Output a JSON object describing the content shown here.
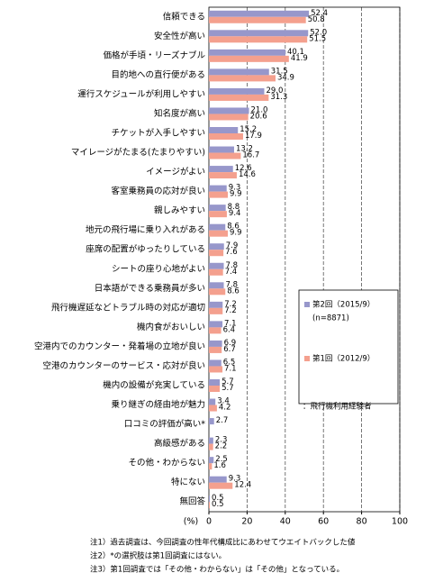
{
  "chart_data": {
    "type": "hbar",
    "categories": [
      "信頼できる",
      "安全性が高い",
      "価格が手頃・リーズナブル",
      "目的地への直行便がある",
      "運行スケジュールが利用しやすい",
      "知名度が高い",
      "チケットが入手しやすい",
      "マイレージがたまる(たまりやすい)",
      "イメージがよい",
      "客室乗務員の応対が良い",
      "親しみやすい",
      "地元の飛行場に乗り入れがある",
      "座席の配置がゆったりしている",
      "シートの座り心地がよい",
      "日本語ができる乗務員が多い",
      "飛行機遅延などトラブル時の対応が適切",
      "機内食がおいしい",
      "空港内でのカウンター・発着場の立地が良い",
      "空港のカウンターのサービス・応対が良い",
      "機内の設備が充実している",
      "乗り継ぎの経由地が魅力",
      "口コミの評価が高い*",
      "高級感がある",
      "その他・わからない",
      "特にない",
      "無回答"
    ],
    "series": [
      {
        "name": "第2回（2015/9）",
        "color": "#9797cb",
        "values": [
          52.4,
          52.0,
          40.1,
          31.5,
          29.0,
          21.0,
          15.2,
          13.2,
          12.6,
          9.3,
          8.8,
          8.6,
          7.9,
          7.8,
          7.8,
          7.2,
          7.1,
          6.9,
          6.5,
          5.7,
          3.4,
          2.7,
          2.3,
          2.5,
          9.3,
          0.5
        ],
        "value_labels": [
          "52.4",
          "52.0",
          "40.1",
          "31.5",
          "29.0",
          "21.0",
          "15.2",
          "13.2",
          "12.6",
          "9.3",
          "8.8",
          "8.6",
          "7.9",
          "7.8",
          "7.8",
          "7.2",
          "7.1",
          "6.9",
          "6.5",
          "5.7",
          "3.4",
          "2.7",
          "2.3",
          "2.5",
          "9.3",
          "0.5"
        ]
      },
      {
        "name": "第1回（2012/9）",
        "color": "#f4a08e",
        "values": [
          50.8,
          51.5,
          41.9,
          34.9,
          31.3,
          20.6,
          17.9,
          16.7,
          14.6,
          9.9,
          9.4,
          9.9,
          7.6,
          7.4,
          8.6,
          7.2,
          6.4,
          6.7,
          7.1,
          5.7,
          4.2,
          null,
          2.2,
          1.6,
          12.4,
          0.5
        ],
        "value_labels": [
          "50.8",
          "51.5",
          "41.9",
          "34.9",
          "31.3",
          "20.6",
          "17.9",
          "16.7",
          "14.6",
          "9.9",
          "9.4",
          "9.9",
          "7.6",
          "7.4",
          "8.6",
          "7.2",
          "6.4",
          "6.7",
          "7.1",
          "5.7",
          "4.2",
          null,
          "2.2",
          "1.6",
          "12.4",
          "0.5"
        ]
      }
    ],
    "legend_note": "(n=8871)",
    "annotation": "：飛行機利用経験者",
    "axis_unit": "(%)",
    "xlim": [
      0,
      100
    ],
    "xticks": [
      0,
      20,
      40,
      60,
      80,
      100
    ],
    "grid": true,
    "notes": [
      "注1）過去調査は、今回調査の性年代構成比にあわせてウエイトバックした値",
      "注2）*の選択肢は第1回調査にはない。",
      "注3）第1回調査では「その他・わからない」は「その他」となっている。"
    ]
  }
}
